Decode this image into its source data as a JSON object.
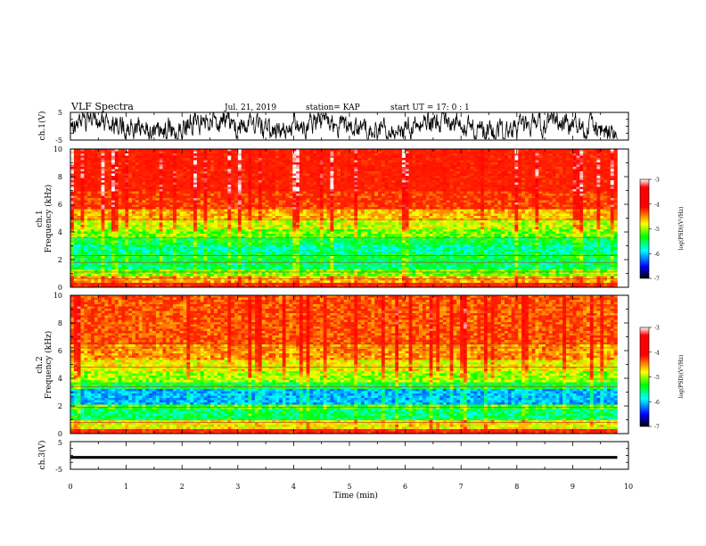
{
  "header": {
    "title": "VLF Spectra",
    "date": "Jul. 21, 2019",
    "station": "station= KAP",
    "start_ut": "start UT = 17: 0 : 1"
  },
  "colorbar": {
    "label": "log(PSD)(V²/Hz)",
    "range": [
      -7,
      -3
    ],
    "ticks": [
      "-3",
      "-4",
      "-5",
      "-6",
      "-7"
    ],
    "colors": [
      "#ffffff",
      "#ff0000",
      "#ffff00",
      "#00ff00",
      "#00ffff",
      "#0000ff",
      "#000000"
    ]
  },
  "chart_data": [
    {
      "type": "line",
      "panel": "ch1-waveform",
      "ylabel": "ch.1(V)",
      "ylim": [
        -5,
        5
      ],
      "ytick_labels": [
        "5",
        "-5"
      ],
      "xlim": [
        0,
        10
      ],
      "trace_color": "#000000",
      "trace_x_end": 9.8,
      "trace_envelope": [
        [
          0,
          -4.6,
          4.8
        ],
        [
          9.8,
          -4.6,
          4.8
        ]
      ],
      "note_points": "dense noisy trace spanning most of range"
    },
    {
      "type": "heatmap",
      "panel": "ch1-spectrogram",
      "ylabel_line1": "ch.1",
      "ylabel_line2": "Frequency (kHz)",
      "ylim": [
        0,
        10
      ],
      "ytick_labels": [
        "0",
        "2",
        "4",
        "6",
        "8",
        "10"
      ],
      "xlim": [
        0,
        10
      ],
      "data_x_end": 9.8,
      "value_units": "log(PSD)",
      "freq_profile": [
        [
          0,
          0.3,
          -3.9
        ],
        [
          0.3,
          0.8,
          -4.4
        ],
        [
          0.8,
          1.3,
          -4.9
        ],
        [
          1.3,
          2.0,
          -5.3
        ],
        [
          2.0,
          2.4,
          -5.2
        ],
        [
          2.4,
          3.1,
          -5.4
        ],
        [
          3.1,
          3.6,
          -5.2
        ],
        [
          3.6,
          4.2,
          -4.9
        ],
        [
          4.2,
          4.9,
          -4.7
        ],
        [
          4.9,
          5.6,
          -4.4
        ],
        [
          5.6,
          7.0,
          -4.0
        ],
        [
          7.0,
          10.0,
          -3.8
        ]
      ],
      "lines_khz": [
        0.6,
        1.1,
        1.8,
        2.3,
        3.6,
        4.9
      ]
    },
    {
      "type": "heatmap",
      "panel": "ch2-spectrogram",
      "ylabel_line1": "ch.2",
      "ylabel_line2": "Frequency (kHz)",
      "ylim": [
        0,
        10
      ],
      "ytick_labels": [
        "0",
        "2",
        "4",
        "6",
        "8",
        "10"
      ],
      "xlim": [
        0,
        10
      ],
      "data_x_end": 9.8,
      "value_units": "log(PSD)",
      "freq_profile": [
        [
          0,
          0.3,
          -3.9
        ],
        [
          0.3,
          0.9,
          -4.6
        ],
        [
          0.9,
          1.7,
          -5.3
        ],
        [
          1.7,
          2.1,
          -5.0
        ],
        [
          2.1,
          3.3,
          -5.8
        ],
        [
          3.3,
          3.7,
          -5.2
        ],
        [
          3.7,
          4.5,
          -4.8
        ],
        [
          4.5,
          5.3,
          -4.6
        ],
        [
          5.3,
          6.5,
          -4.3
        ],
        [
          6.5,
          10.0,
          -4.1
        ]
      ],
      "lines_khz": [
        0.8,
        1.9,
        3.4,
        4.8,
        6.2,
        6.5
      ]
    },
    {
      "type": "line",
      "panel": "ch3-waveform",
      "ylabel": "ch.3(V)",
      "ylim": [
        -5,
        5
      ],
      "ytick_labels": [
        "5",
        "-5"
      ],
      "xlim": [
        0,
        10
      ],
      "trace_color": "#000000",
      "trace_x_end": 9.8,
      "trace_band": [
        -1.2,
        -0.2
      ]
    }
  ],
  "xaxis": {
    "label": "Time (min)",
    "tick_labels": [
      "0",
      "1",
      "2",
      "3",
      "4",
      "5",
      "6",
      "7",
      "8",
      "9",
      "10"
    ]
  }
}
